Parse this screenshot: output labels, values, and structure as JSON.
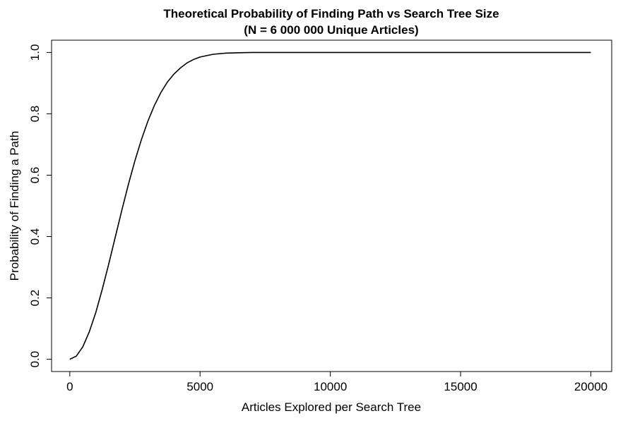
{
  "chart_data": {
    "type": "line",
    "title_line1": "Theoretical Probability of Finding Path vs Search Tree Size",
    "title_line2": "(N = 6 000 000 Unique Articles)",
    "xlabel": "Articles Explored per Search Tree",
    "ylabel": "Probability of Finding a Path",
    "xlim": [
      -700,
      20800
    ],
    "ylim": [
      -0.04,
      1.04
    ],
    "x_ticks": [
      0,
      5000,
      10000,
      15000,
      20000
    ],
    "x_tick_labels": [
      "0",
      "5000",
      "10000",
      "15000",
      "20000"
    ],
    "y_ticks": [
      0.0,
      0.2,
      0.4,
      0.6,
      0.8,
      1.0
    ],
    "y_tick_labels": [
      "0.0",
      "0.2",
      "0.4",
      "0.6",
      "0.8",
      "1.0"
    ],
    "grid": false,
    "series": [
      {
        "color": "#000000",
        "x": [
          0,
          250,
          500,
          750,
          1000,
          1250,
          1500,
          1750,
          2000,
          2250,
          2500,
          2750,
          3000,
          3250,
          3500,
          3750,
          4000,
          4250,
          4500,
          4750,
          5000,
          5500,
          6000,
          6500,
          7000,
          8000,
          9000,
          10000,
          12000,
          14000,
          16000,
          18000,
          20000
        ],
        "y": [
          0.0,
          0.01,
          0.041,
          0.09,
          0.153,
          0.229,
          0.312,
          0.4,
          0.487,
          0.57,
          0.647,
          0.716,
          0.777,
          0.828,
          0.87,
          0.904,
          0.93,
          0.95,
          0.966,
          0.977,
          0.985,
          0.994,
          0.998,
          0.999,
          1.0,
          1.0,
          1.0,
          1.0,
          1.0,
          1.0,
          1.0,
          1.0,
          1.0
        ]
      }
    ]
  }
}
